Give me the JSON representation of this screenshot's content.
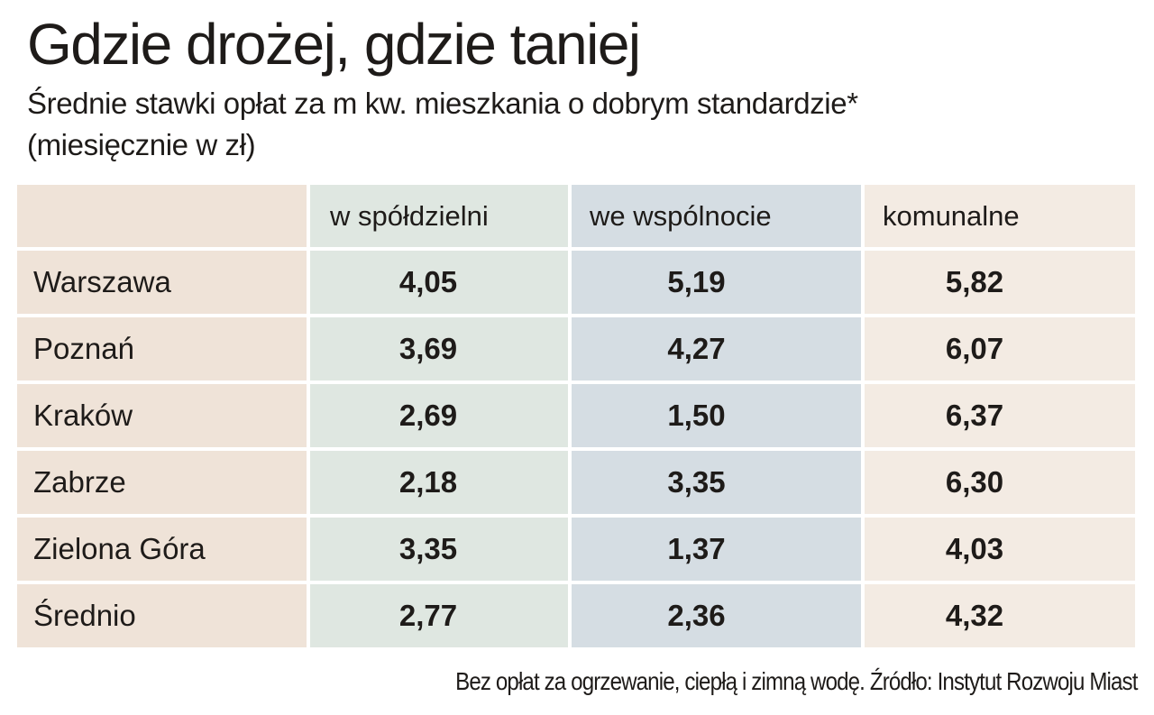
{
  "header": {
    "title": "Gdzie drożej, gdzie taniej",
    "subtitle_line1": "Średnie stawki opłat za m kw. mieszkania o dobrym standardzie*",
    "subtitle_line2": "(miesięcznie w zł)"
  },
  "table": {
    "columns": [
      "",
      "w spółdzielni",
      "we wspólnocie",
      "komunalne"
    ],
    "rows": [
      {
        "city": "Warszawa",
        "spoldzielnia": "4,05",
        "wspolnota": "5,19",
        "komunalne": "5,82"
      },
      {
        "city": "Poznań",
        "spoldzielnia": "3,69",
        "wspolnota": "4,27",
        "komunalne": "6,07"
      },
      {
        "city": "Kraków",
        "spoldzielnia": "2,69",
        "wspolnota": "1,50",
        "komunalne": "6,37"
      },
      {
        "city": "Zabrze",
        "spoldzielnia": "2,18",
        "wspolnota": "3,35",
        "komunalne": "6,30"
      },
      {
        "city": "Zielona Góra",
        "spoldzielnia": "3,35",
        "wspolnota": "1,37",
        "komunalne": "4,03"
      },
      {
        "city": "Średnio",
        "spoldzielnia": "2,77",
        "wspolnota": "2,36",
        "komunalne": "4,32"
      }
    ]
  },
  "footer": {
    "note": "Bez opłat za ogrzewanie, ciepłą i zimną wodę. Źródło: Instytut Rozwoju Miast"
  },
  "colors": {
    "city_column": "#efe3d8",
    "spoldzielnia_column": "#dfe7e1",
    "wspolnota_column": "#d5dde3",
    "komunalne_column": "#f3ebe3",
    "text": "#1e1b19"
  },
  "chart_data": {
    "type": "table",
    "title": "Gdzie drożej, gdzie taniej",
    "subtitle": "Średnie stawki opłat za m kw. mieszkania o dobrym standardzie* (miesięcznie w zł)",
    "categories": [
      "Warszawa",
      "Poznań",
      "Kraków",
      "Zabrze",
      "Zielona Góra",
      "Średnio"
    ],
    "series": [
      {
        "name": "w spółdzielni",
        "values": [
          4.05,
          3.69,
          2.69,
          2.18,
          3.35,
          2.77
        ]
      },
      {
        "name": "we wspólnocie",
        "values": [
          5.19,
          4.27,
          1.5,
          3.35,
          1.37,
          2.36
        ]
      },
      {
        "name": "komunalne",
        "values": [
          5.82,
          6.07,
          6.37,
          6.3,
          4.03,
          4.32
        ]
      }
    ],
    "unit": "zł / m kw. miesięcznie",
    "footnote": "Bez opłat za ogrzewanie, ciepłą i zimną wodę. Źródło: Instytut Rozwoju Miast"
  }
}
